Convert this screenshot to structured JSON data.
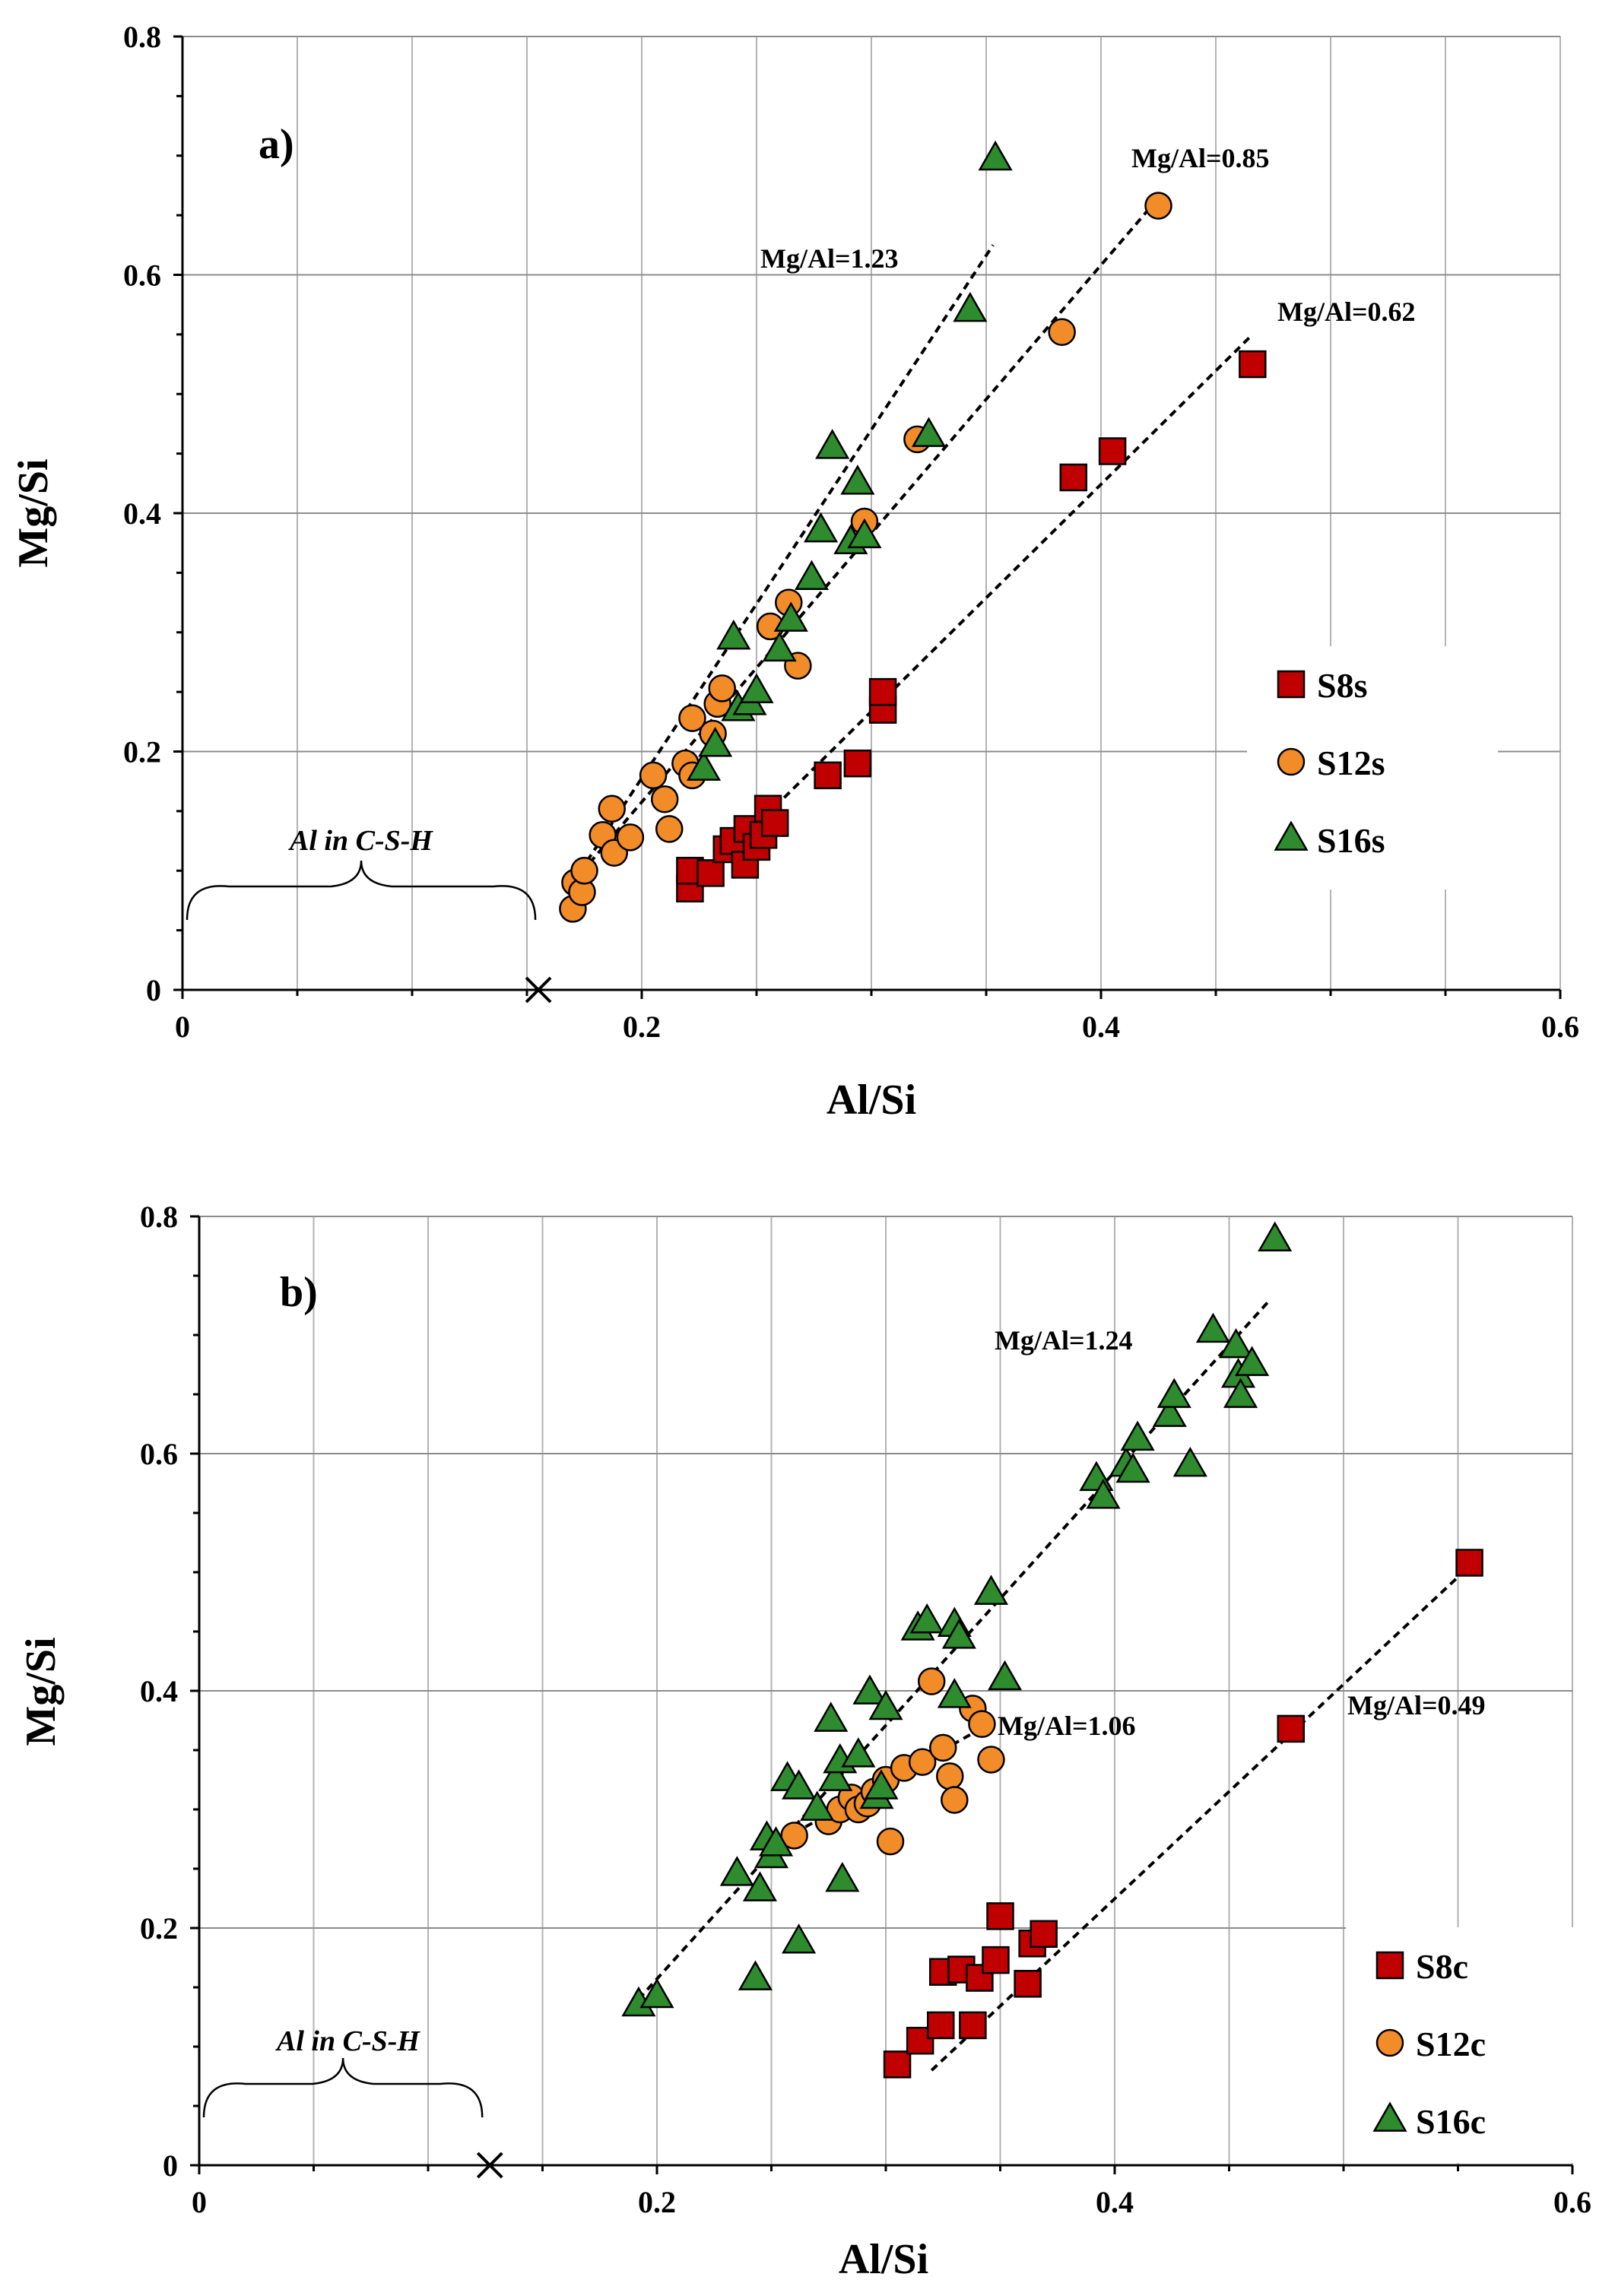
{
  "chart_data": [
    {
      "type": "scatter",
      "panel_label": "a)",
      "xlabel": "Al/Si",
      "ylabel": "Mg/Si",
      "xlim": [
        0,
        0.6
      ],
      "ylim": [
        0,
        0.8
      ],
      "x_ticks": [
        "0",
        "0.2",
        "0.4",
        "0.6"
      ],
      "y_ticks": [
        "0",
        "0.2",
        "0.4",
        "0.6",
        "0.8"
      ],
      "grid": true,
      "legend_position": "right",
      "series": [
        {
          "name": "S8s",
          "marker": "square",
          "color": "#c00000",
          "points": [
            [
              0.221,
              0.085
            ],
            [
              0.221,
              0.1
            ],
            [
              0.23,
              0.098
            ],
            [
              0.237,
              0.118
            ],
            [
              0.24,
              0.125
            ],
            [
              0.245,
              0.105
            ],
            [
              0.246,
              0.135
            ],
            [
              0.25,
              0.12
            ],
            [
              0.253,
              0.13
            ],
            [
              0.255,
              0.152
            ],
            [
              0.258,
              0.14
            ],
            [
              0.281,
              0.18
            ],
            [
              0.294,
              0.19
            ],
            [
              0.305,
              0.235
            ],
            [
              0.305,
              0.25
            ],
            [
              0.388,
              0.43
            ],
            [
              0.405,
              0.452
            ],
            [
              0.466,
              0.525
            ]
          ]
        },
        {
          "name": "S12s",
          "marker": "circle",
          "color": "#f28c28",
          "points": [
            [
              0.17,
              0.068
            ],
            [
              0.171,
              0.09
            ],
            [
              0.174,
              0.082
            ],
            [
              0.175,
              0.1
            ],
            [
              0.183,
              0.13
            ],
            [
              0.187,
              0.152
            ],
            [
              0.188,
              0.115
            ],
            [
              0.195,
              0.128
            ],
            [
              0.205,
              0.18
            ],
            [
              0.21,
              0.16
            ],
            [
              0.212,
              0.135
            ],
            [
              0.219,
              0.19
            ],
            [
              0.222,
              0.18
            ],
            [
              0.222,
              0.228
            ],
            [
              0.231,
              0.215
            ],
            [
              0.233,
              0.24
            ],
            [
              0.235,
              0.253
            ],
            [
              0.256,
              0.305
            ],
            [
              0.264,
              0.325
            ],
            [
              0.268,
              0.272
            ],
            [
              0.297,
              0.393
            ],
            [
              0.32,
              0.462
            ],
            [
              0.383,
              0.552
            ],
            [
              0.425,
              0.658
            ]
          ]
        },
        {
          "name": "S16s",
          "marker": "triangle",
          "color": "#2e8b2e",
          "points": [
            [
              0.227,
              0.185
            ],
            [
              0.232,
              0.205
            ],
            [
              0.24,
              0.295
            ],
            [
              0.242,
              0.235
            ],
            [
              0.247,
              0.24
            ],
            [
              0.25,
              0.25
            ],
            [
              0.26,
              0.285
            ],
            [
              0.265,
              0.31
            ],
            [
              0.274,
              0.345
            ],
            [
              0.278,
              0.385
            ],
            [
              0.283,
              0.455
            ],
            [
              0.291,
              0.375
            ],
            [
              0.294,
              0.425
            ],
            [
              0.297,
              0.38
            ],
            [
              0.325,
              0.465
            ],
            [
              0.343,
              0.57
            ],
            [
              0.354,
              0.697
            ]
          ]
        }
      ],
      "trendlines": [
        {
          "label": "Mg/Al=1.23",
          "from": [
            0.17,
            0.09
          ],
          "to": [
            0.353,
            0.625
          ]
        },
        {
          "label": "Mg/Al=0.85",
          "from": [
            0.17,
            0.09
          ],
          "to": [
            0.423,
            0.66
          ]
        },
        {
          "label": "Mg/Al=0.62",
          "from": [
            0.222,
            0.085
          ],
          "to": [
            0.466,
            0.55
          ]
        }
      ],
      "annotation": {
        "text": "Al in C-S-H",
        "x_start": 0,
        "x_end": 0.155,
        "marker_x": 0.155,
        "marker_y": 0
      }
    },
    {
      "type": "scatter",
      "panel_label": "b)",
      "xlabel": "Al/Si",
      "ylabel": "Mg/Si",
      "xlim": [
        0,
        0.6
      ],
      "ylim": [
        0,
        0.8
      ],
      "x_ticks": [
        "0",
        "0.2",
        "0.4",
        "0.6"
      ],
      "y_ticks": [
        "0",
        "0.2",
        "0.4",
        "0.6",
        "0.8"
      ],
      "grid": true,
      "legend_position": "bottom-right",
      "series": [
        {
          "name": "S8c",
          "marker": "square",
          "color": "#c00000",
          "points": [
            [
              0.305,
              0.085
            ],
            [
              0.315,
              0.105
            ],
            [
              0.324,
              0.118
            ],
            [
              0.325,
              0.163
            ],
            [
              0.333,
              0.165
            ],
            [
              0.338,
              0.118
            ],
            [
              0.341,
              0.158
            ],
            [
              0.348,
              0.173
            ],
            [
              0.35,
              0.21
            ],
            [
              0.362,
              0.153
            ],
            [
              0.364,
              0.187
            ],
            [
              0.369,
              0.195
            ],
            [
              0.477,
              0.368
            ],
            [
              0.555,
              0.508
            ]
          ]
        },
        {
          "name": "S12c",
          "marker": "circle",
          "color": "#f28c28",
          "points": [
            [
              0.26,
              0.278
            ],
            [
              0.275,
              0.29
            ],
            [
              0.28,
              0.3
            ],
            [
              0.285,
              0.31
            ],
            [
              0.288,
              0.3
            ],
            [
              0.292,
              0.305
            ],
            [
              0.295,
              0.315
            ],
            [
              0.3,
              0.325
            ],
            [
              0.302,
              0.273
            ],
            [
              0.308,
              0.335
            ],
            [
              0.316,
              0.34
            ],
            [
              0.32,
              0.408
            ],
            [
              0.325,
              0.352
            ],
            [
              0.328,
              0.328
            ],
            [
              0.33,
              0.308
            ],
            [
              0.338,
              0.385
            ],
            [
              0.342,
              0.372
            ],
            [
              0.346,
              0.342
            ]
          ]
        },
        {
          "name": "S16c",
          "marker": "triangle",
          "color": "#2e8b2e",
          "points": [
            [
              0.192,
              0.135
            ],
            [
              0.2,
              0.142
            ],
            [
              0.235,
              0.245
            ],
            [
              0.243,
              0.157
            ],
            [
              0.245,
              0.232
            ],
            [
              0.248,
              0.275
            ],
            [
              0.25,
              0.26
            ],
            [
              0.252,
              0.27
            ],
            [
              0.257,
              0.325
            ],
            [
              0.262,
              0.188
            ],
            [
              0.262,
              0.318
            ],
            [
              0.27,
              0.3
            ],
            [
              0.276,
              0.375
            ],
            [
              0.278,
              0.325
            ],
            [
              0.28,
              0.34
            ],
            [
              0.281,
              0.24
            ],
            [
              0.288,
              0.345
            ],
            [
              0.293,
              0.398
            ],
            [
              0.296,
              0.31
            ],
            [
              0.298,
              0.318
            ],
            [
              0.3,
              0.385
            ],
            [
              0.314,
              0.452
            ],
            [
              0.318,
              0.458
            ],
            [
              0.33,
              0.395
            ],
            [
              0.33,
              0.455
            ],
            [
              0.332,
              0.445
            ],
            [
              0.346,
              0.482
            ],
            [
              0.352,
              0.41
            ],
            [
              0.392,
              0.578
            ],
            [
              0.395,
              0.563
            ],
            [
              0.405,
              0.59
            ],
            [
              0.408,
              0.585
            ],
            [
              0.41,
              0.612
            ],
            [
              0.424,
              0.632
            ],
            [
              0.426,
              0.648
            ],
            [
              0.433,
              0.59
            ],
            [
              0.443,
              0.703
            ],
            [
              0.453,
              0.69
            ],
            [
              0.454,
              0.665
            ],
            [
              0.455,
              0.648
            ],
            [
              0.46,
              0.675
            ],
            [
              0.47,
              0.78
            ]
          ]
        }
      ],
      "trendlines": [
        {
          "label": "Mg/Al=1.24",
          "from": [
            0.192,
            0.14
          ],
          "to": [
            0.468,
            0.73
          ]
        },
        {
          "label": "Mg/Al=1.06",
          "from": [
            0.26,
            0.28
          ],
          "to": [
            0.348,
            0.375
          ]
        },
        {
          "label": "Mg/Al=0.49",
          "from": [
            0.32,
            0.08
          ],
          "to": [
            0.555,
            0.505
          ]
        }
      ],
      "annotation": {
        "text": "Al in C-S-H",
        "x_start": 0,
        "x_end": 0.125,
        "marker_x": 0.127,
        "marker_y": 0
      }
    }
  ]
}
